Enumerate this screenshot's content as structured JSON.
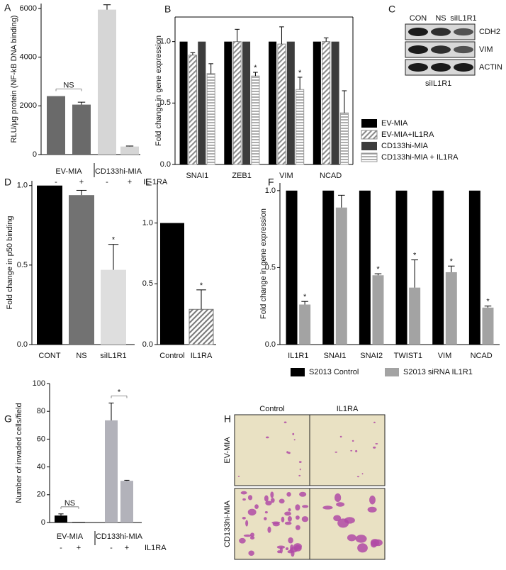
{
  "chart_data": [
    {
      "type": "bar",
      "panel": "A",
      "ylabel": "RLU/μg protein (NF-kB DNA binding)",
      "categories": [
        "-",
        "+",
        "-",
        "+"
      ],
      "values": [
        2400,
        2050,
        5950,
        330
      ],
      "errors": [
        null,
        100,
        200,
        20
      ],
      "colors": [
        "#6a6a6a",
        "#6a6a6a",
        "#d6d6d6",
        "#d6d6d6"
      ],
      "groups": [
        {
          "label": "EV-MIA",
          "bars": [
            0,
            1
          ]
        },
        {
          "label": "CD133hi-MIA",
          "bars": [
            2,
            3
          ]
        }
      ],
      "treatment": "IL-1RA",
      "comparisons": [
        {
          "text": "NS",
          "bars": [
            0,
            1
          ]
        },
        {
          "text": "*",
          "bars": [
            2,
            3
          ]
        }
      ],
      "ylim": [
        0,
        6200
      ],
      "yticks": [
        0,
        2000,
        4000,
        6000
      ]
    },
    {
      "type": "grouped_bar",
      "panel": "B",
      "ylabel": "Fold change in gene expression",
      "categories": [
        "SNAI1",
        "ZEB1",
        "VIM",
        "NCAD"
      ],
      "series": [
        {
          "name": "EV-MIA",
          "color": "#000000",
          "values": [
            1,
            1,
            1,
            1
          ]
        },
        {
          "name": "EV-MIA+IL1RA",
          "color": "#8c8c8c",
          "pattern": "diagonal",
          "values": [
            0.89,
            1.0,
            0.98,
            1.0
          ],
          "errors": [
            0.02,
            0.1,
            0.14,
            0.03
          ]
        },
        {
          "name": "CD133hi-MIA",
          "color": "#3c3c3c",
          "values": [
            1,
            1,
            1,
            1
          ]
        },
        {
          "name": "CD133hi-MIA + IL1RA",
          "color": "#9a9a9a",
          "pattern": "horizontal",
          "values": [
            0.74,
            0.72,
            0.61,
            0.42
          ],
          "errors": [
            0.08,
            0.03,
            0.1,
            0.18
          ],
          "significance": [
            null,
            "*",
            "*",
            null
          ]
        }
      ],
      "legend": "right",
      "ylim": [
        0,
        1.2
      ],
      "yticks": [
        {
          "value": 0,
          "label": "0.0"
        },
        0.5,
        {
          "value": 1,
          "label": "1.0"
        }
      ]
    },
    {
      "type": "bar",
      "panel": "D",
      "ylabel": "Fold change in p50 binding",
      "categories": [
        "CONT",
        "NS",
        "siIL1R1"
      ],
      "values": [
        1.0,
        0.94,
        0.47
      ],
      "errors": [
        null,
        0.03,
        0.16
      ],
      "significance": [
        null,
        null,
        "*"
      ],
      "colors": [
        "#000000",
        "#727272",
        "#dedede"
      ],
      "ylim": [
        0,
        1.03
      ],
      "yticks": [
        {
          "value": 0,
          "label": "0.0"
        },
        0.5,
        {
          "value": 1,
          "label": "1.0"
        }
      ]
    },
    {
      "type": "bar",
      "panel": "E",
      "categories": [
        "Control",
        "IL1RA"
      ],
      "values": [
        1.0,
        0.29
      ],
      "errors": [
        null,
        0.16
      ],
      "significance": [
        null,
        "*"
      ],
      "colors": [
        "#000000",
        "#7a7a7a"
      ],
      "patterns": [
        null,
        "diagonal"
      ],
      "ylim": [
        0,
        1.33
      ],
      "yticks": [
        {
          "value": 0,
          "label": "0.0"
        },
        0.5,
        {
          "value": 1,
          "label": "1.0"
        }
      ]
    },
    {
      "type": "grouped_bar",
      "panel": "F",
      "ylabel": "Fold change in gene expression",
      "categories": [
        "IL1R1",
        "SNAI1",
        "SNAI2",
        "TWIST1",
        "VIM",
        "NCAD"
      ],
      "series": [
        {
          "name": "S2013 Control",
          "color": "#000000",
          "values": [
            1,
            1,
            1,
            1,
            1,
            1
          ]
        },
        {
          "name": "S2013 siRNA IL1R1",
          "color": "#a3a3a3",
          "values": [
            0.26,
            0.89,
            0.45,
            0.37,
            0.47,
            0.24
          ],
          "errors": [
            0.02,
            0.08,
            0.01,
            0.18,
            0.04,
            0.01
          ],
          "significance": [
            "*",
            null,
            "*",
            "*",
            "*",
            "*"
          ]
        }
      ],
      "legend": "bottom",
      "ylim": [
        0,
        1.05
      ],
      "yticks": [
        {
          "value": 0,
          "label": "0.0"
        },
        0.5,
        {
          "value": 1,
          "label": "1.0"
        }
      ]
    },
    {
      "type": "bar",
      "panel": "G",
      "ylabel": "Number of invaded cells/field",
      "categories": [
        "-",
        "+",
        "-",
        "+"
      ],
      "values": [
        5,
        0.4,
        73.5,
        30
      ],
      "errors": [
        1.2,
        null,
        12.5,
        0.4
      ],
      "colors": [
        "#000000",
        "#000000",
        "#b2b2ba",
        "#b2b2ba"
      ],
      "groups": [
        {
          "label": "EV-MIA",
          "bars": [
            0,
            1
          ]
        },
        {
          "label": "CD133hi-MIA",
          "bars": [
            2,
            3
          ]
        }
      ],
      "treatment": "IL1RA",
      "comparisons": [
        {
          "text": "NS",
          "bars": [
            0,
            1
          ]
        },
        {
          "text": "*",
          "bars": [
            2,
            3
          ]
        }
      ],
      "ylim": [
        0,
        100
      ],
      "yticks": [
        0,
        20,
        40,
        60,
        80,
        100
      ]
    }
  ],
  "blot": {
    "panel": "C",
    "lanes": [
      "CON",
      "NS",
      "siIL1R1"
    ],
    "proteins": [
      "CDH2",
      "VIM",
      "ACTIN"
    ],
    "caption": "siIL1R1"
  },
  "micrographs": {
    "panel": "H",
    "columns": [
      "Control",
      "IL1RA"
    ],
    "rows": [
      "EV-MIA",
      "CD133hi-MIA"
    ]
  }
}
